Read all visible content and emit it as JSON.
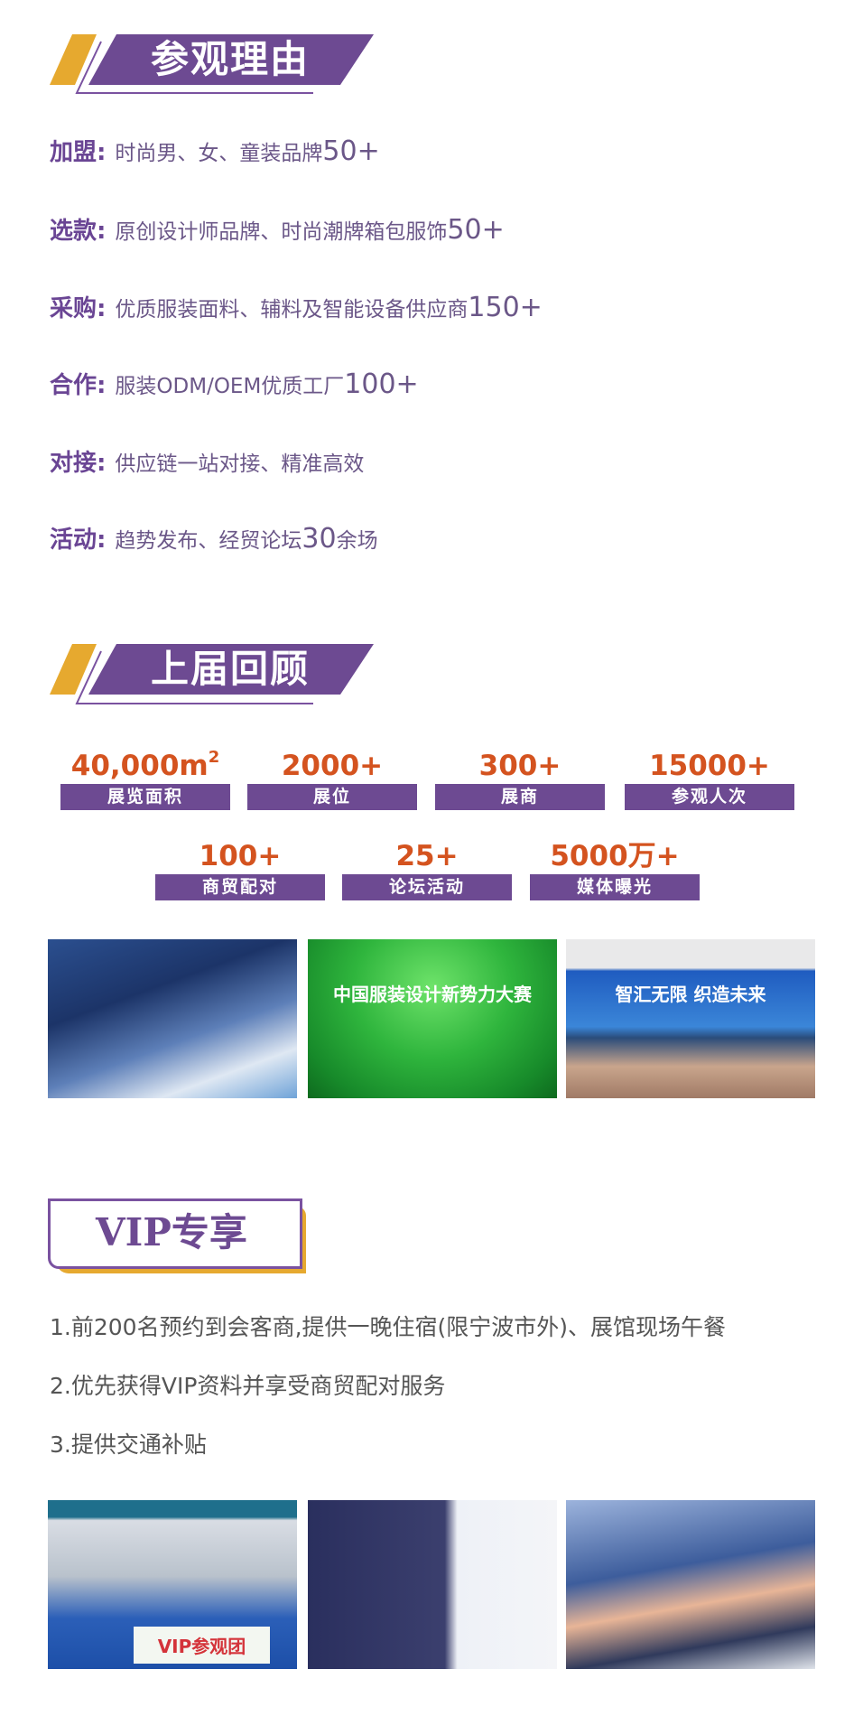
{
  "colors": {
    "purple": "#6d4a92",
    "yellow": "#e6a92f",
    "orange": "#d4531f",
    "label_purple": "#6a4594"
  },
  "section1": {
    "title": "参观理由",
    "reasons": [
      {
        "label": "加盟:",
        "text": "时尚男、女、童装品牌",
        "num": "50+"
      },
      {
        "label": "选款:",
        "text": "原创设计师品牌、时尚潮牌箱包服饰",
        "num": "50+"
      },
      {
        "label": "采购:",
        "text": "优质服装面料、辅料及智能设备供应商",
        "num": "150+"
      },
      {
        "label": "合作:",
        "text": "服装ODM/OEM优质工厂",
        "num": "100+"
      },
      {
        "label": "对接:",
        "text": "供应链一站对接、精准高效",
        "num": ""
      },
      {
        "label": "活动:",
        "text": "趋势发布、经贸论坛",
        "num": "30",
        "suffix": "余场"
      }
    ]
  },
  "section2": {
    "title": "上届回顾",
    "stats": [
      {
        "value": "40,000m",
        "sup": "2",
        "label": "展览面积"
      },
      {
        "value": "2000+",
        "label": "展位"
      },
      {
        "value": "300+",
        "label": "展商"
      },
      {
        "value": "15000+",
        "label": "参观人次"
      },
      {
        "value": "100+",
        "label": "商贸配对"
      },
      {
        "value": "25+",
        "label": "论坛活动"
      },
      {
        "value": "5000万+",
        "label": "媒体曝光"
      }
    ],
    "photos": [
      {
        "name": "forum-audience-photo"
      },
      {
        "name": "fashion-design-competition-photo",
        "caption": "中国服装设计新势力大赛"
      },
      {
        "name": "textile-robot-forum-photo",
        "caption": "智汇无限 织造未来"
      }
    ]
  },
  "section3": {
    "title": "VIP专享",
    "perks": [
      "1.前200名预约到会客商,提供一晚住宿(限宁波市外)、展馆现场午餐",
      "2.优先获得VIP资料并享受商贸配对服务",
      "3.提供交通补贴"
    ],
    "photos": [
      {
        "name": "vip-group-photo",
        "caption": "VIP参观团"
      },
      {
        "name": "exhibition-booth-photo"
      },
      {
        "name": "vip-visit-photo"
      }
    ]
  }
}
